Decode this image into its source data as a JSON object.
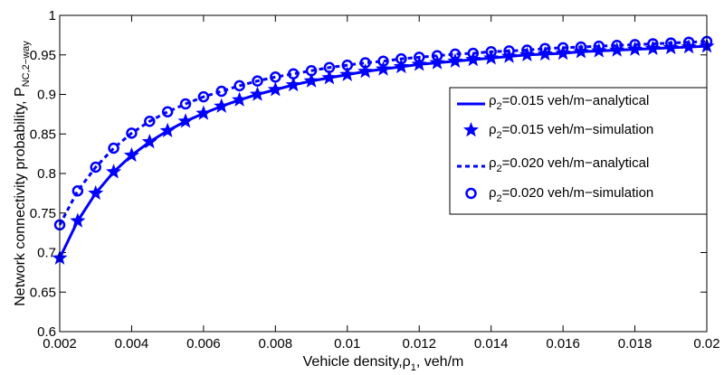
{
  "chart_data": {
    "type": "line",
    "xlabel": {
      "prefix": "Vehicle density,",
      "symbol": "ρ",
      "sub": "1",
      "suffix": ", veh/m"
    },
    "ylabel": {
      "prefix": "Network connectivity probability, P",
      "sub": "NC,2−way"
    },
    "xlim": [
      0.002,
      0.02
    ],
    "ylim": [
      0.6,
      1
    ],
    "xticks": [
      0.002,
      0.004,
      0.006,
      0.008,
      0.01,
      0.012,
      0.014,
      0.016,
      0.018,
      0.02
    ],
    "xtick_labels": [
      "0.002",
      "0.004",
      "0.006",
      "0.008",
      "0.01",
      "0.012",
      "0.014",
      "0.016",
      "0.018",
      "0.02"
    ],
    "yticks": [
      0.6,
      0.65,
      0.7,
      0.75,
      0.8,
      0.85,
      0.9,
      0.95,
      1
    ],
    "ytick_labels": [
      "0.6",
      "0.65",
      "0.7",
      "0.75",
      "0.8",
      "0.85",
      "0.9",
      "0.95",
      "1"
    ],
    "grid": false,
    "legend_position": "right",
    "color": "#0000ff",
    "x": [
      0.002,
      0.0025,
      0.003,
      0.0035,
      0.004,
      0.0045,
      0.005,
      0.0055,
      0.006,
      0.0065,
      0.007,
      0.0075,
      0.008,
      0.0085,
      0.009,
      0.0095,
      0.01,
      0.0105,
      0.011,
      0.0115,
      0.012,
      0.0125,
      0.013,
      0.0135,
      0.014,
      0.0145,
      0.015,
      0.0155,
      0.016,
      0.0165,
      0.017,
      0.0175,
      0.018,
      0.0185,
      0.019,
      0.0195,
      0.02
    ],
    "series": [
      {
        "legend": {
          "symbol": "ρ",
          "sub": "2",
          "text": "=0.015 veh/m−analytical"
        },
        "style": "solid",
        "marker": "none",
        "values": [
          0.693,
          0.74,
          0.775,
          0.802,
          0.823,
          0.84,
          0.854,
          0.866,
          0.876,
          0.885,
          0.893,
          0.9,
          0.906,
          0.912,
          0.917,
          0.921,
          0.925,
          0.929,
          0.932,
          0.935,
          0.938,
          0.94,
          0.942,
          0.944,
          0.946,
          0.948,
          0.95,
          0.951,
          0.952,
          0.954,
          0.955,
          0.956,
          0.957,
          0.958,
          0.959,
          0.96,
          0.961
        ]
      },
      {
        "legend": {
          "symbol": "ρ",
          "sub": "2",
          "text": "=0.015 veh/m−simulation"
        },
        "style": "none",
        "marker": "star",
        "values": [
          0.693,
          0.74,
          0.775,
          0.802,
          0.823,
          0.84,
          0.854,
          0.866,
          0.876,
          0.885,
          0.893,
          0.9,
          0.906,
          0.912,
          0.917,
          0.921,
          0.925,
          0.929,
          0.932,
          0.935,
          0.938,
          0.94,
          0.942,
          0.944,
          0.946,
          0.948,
          0.95,
          0.951,
          0.952,
          0.954,
          0.955,
          0.956,
          0.957,
          0.958,
          0.959,
          0.96,
          0.961
        ]
      },
      {
        "legend": {
          "symbol": "ρ",
          "sub": "2",
          "text": "=0.020 veh/m−analytical"
        },
        "style": "dashed",
        "marker": "none",
        "values": [
          0.735,
          0.778,
          0.808,
          0.832,
          0.851,
          0.866,
          0.878,
          0.888,
          0.897,
          0.904,
          0.911,
          0.917,
          0.922,
          0.926,
          0.93,
          0.934,
          0.937,
          0.94,
          0.942,
          0.945,
          0.947,
          0.949,
          0.951,
          0.952,
          0.954,
          0.955,
          0.956,
          0.958,
          0.959,
          0.96,
          0.961,
          0.962,
          0.963,
          0.964,
          0.965,
          0.966,
          0.967
        ]
      },
      {
        "legend": {
          "symbol": "ρ",
          "sub": "2",
          "text": "=0.020 veh/m−simulation"
        },
        "style": "none",
        "marker": "circle",
        "values": [
          0.735,
          0.778,
          0.808,
          0.832,
          0.851,
          0.866,
          0.878,
          0.888,
          0.897,
          0.904,
          0.911,
          0.917,
          0.922,
          0.926,
          0.93,
          0.934,
          0.937,
          0.94,
          0.942,
          0.945,
          0.947,
          0.949,
          0.951,
          0.952,
          0.954,
          0.955,
          0.956,
          0.958,
          0.959,
          0.96,
          0.961,
          0.962,
          0.963,
          0.964,
          0.965,
          0.966,
          0.967
        ]
      }
    ]
  }
}
